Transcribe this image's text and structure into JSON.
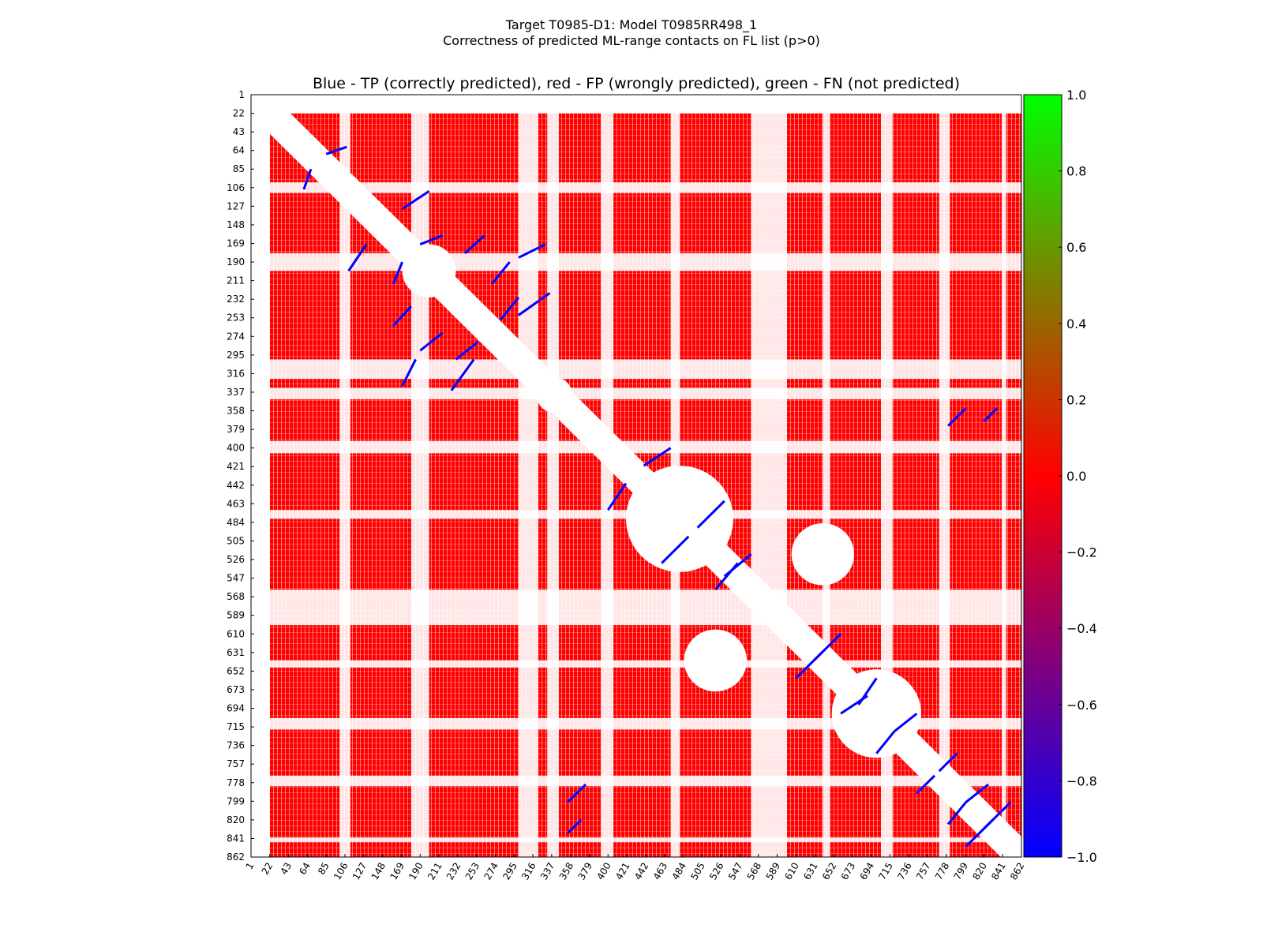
{
  "chart_data": {
    "type": "heatmap",
    "title_line1": "Target T0985-D1: Model T0985RR498_1",
    "title_line2": "Correctness of predicted ML-range contacts on FL list (p>0)",
    "axes_title": "Blue - TP (correctly predicted), red - FP (wrongly predicted), green - FN (not predicted)",
    "x_ticks": [
      1,
      22,
      43,
      64,
      85,
      106,
      127,
      148,
      169,
      190,
      211,
      232,
      253,
      274,
      295,
      316,
      337,
      358,
      379,
      400,
      421,
      442,
      463,
      484,
      505,
      526,
      547,
      568,
      589,
      610,
      631,
      652,
      673,
      694,
      715,
      736,
      757,
      778,
      799,
      820,
      841,
      862
    ],
    "y_ticks": [
      1,
      22,
      43,
      64,
      85,
      106,
      127,
      148,
      169,
      190,
      211,
      232,
      253,
      274,
      295,
      316,
      337,
      358,
      379,
      400,
      421,
      442,
      463,
      484,
      505,
      526,
      547,
      568,
      589,
      610,
      631,
      652,
      673,
      694,
      715,
      736,
      757,
      778,
      799,
      820,
      841,
      862
    ],
    "xlim": [
      1,
      862
    ],
    "ylim": [
      862,
      1
    ],
    "colorbar": {
      "ticks": [
        "1.0",
        "0.8",
        "0.6",
        "0.4",
        "0.2",
        "0.0",
        "−0.2",
        "−0.4",
        "−0.6",
        "−0.8",
        "−1.0"
      ],
      "range": [
        -1.0,
        1.0
      ],
      "colors": [
        "#0000ff",
        "#ff0000",
        "#00ff00"
      ]
    },
    "colors": {
      "tp": "#0000ff",
      "fp": "#ff0000",
      "fn": "#00ff00",
      "background": "#ffffff"
    },
    "block_boundaries": [
      22,
      106,
      190,
      316,
      400,
      589,
      610,
      862
    ],
    "tp_segments": [
      [
        [
          60,
          68
        ],
        [
          85,
          108
        ]
      ],
      [
        [
          160,
          170
        ],
        [
          190,
          215
        ]
      ],
      [
        [
          170,
          185
        ],
        [
          300,
          330
        ]
      ],
      [
        [
          225,
          250
        ],
        [
          300,
          335
        ]
      ],
      [
        [
          230,
          255
        ],
        [
          280,
          300
        ]
      ],
      [
        [
          240,
          262
        ],
        [
          160,
          180
        ]
      ],
      [
        [
          270,
          290
        ],
        [
          190,
          215
        ]
      ],
      [
        [
          170,
          200
        ],
        [
          110,
          130
        ]
      ],
      [
        [
          400,
          420
        ],
        [
          440,
          470
        ]
      ],
      [
        [
          460,
          490
        ],
        [
          500,
          530
        ]
      ],
      [
        [
          520,
          545
        ],
        [
          530,
          560
        ]
      ],
      [
        [
          610,
          640
        ],
        [
          630,
          660
        ]
      ],
      [
        [
          660,
          690
        ],
        [
          680,
          700
        ]
      ],
      [
        [
          700,
          720
        ],
        [
          720,
          745
        ]
      ],
      [
        [
          745,
          765
        ],
        [
          770,
          790
        ]
      ],
      [
        [
          780,
          800
        ],
        [
          800,
          825
        ]
      ],
      [
        [
          355,
          370
        ],
        [
          820,
          835
        ]
      ],
      [
        [
          780,
          800
        ],
        [
          355,
          375
        ]
      ],
      [
        [
          800,
          830
        ],
        [
          820,
          850
        ]
      ]
    ]
  }
}
